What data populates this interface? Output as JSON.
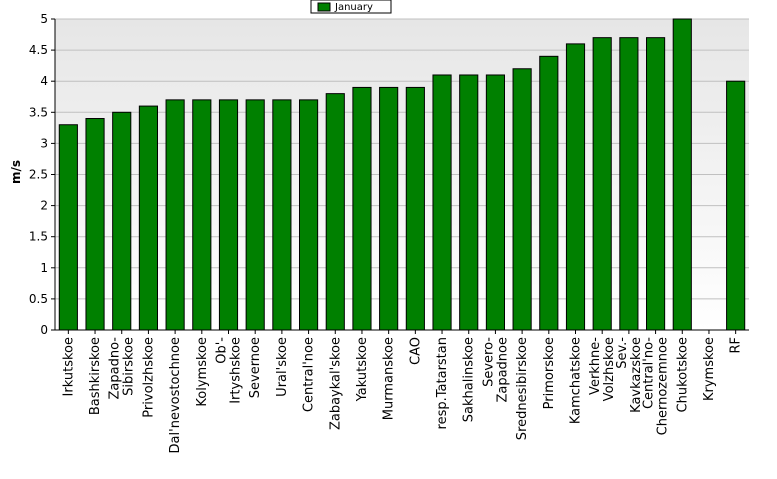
{
  "chart_data": {
    "type": "bar",
    "title": "",
    "xlabel": "",
    "ylabel": "m/s",
    "ylim": [
      0,
      5
    ],
    "yticks": [
      "0",
      "0.5",
      "1",
      "1.5",
      "2",
      "2.5",
      "3",
      "3.5",
      "4",
      "4.5",
      "5"
    ],
    "grid": true,
    "legend_position": "top-center",
    "categories": [
      [
        "Irkutskoe"
      ],
      [
        "Bashkirskoe"
      ],
      [
        "Zapadno-",
        "Sibirskoe"
      ],
      [
        "Privolzhskoe"
      ],
      [
        "Dal'nevostochnoe"
      ],
      [
        "Kolymskoe"
      ],
      [
        "Ob'-",
        "Irtyshskoe"
      ],
      [
        "Severnoe"
      ],
      [
        "Ural'skoe"
      ],
      [
        "Central'noe"
      ],
      [
        "Zabaykal'skoe"
      ],
      [
        "Yakutskoe"
      ],
      [
        "Murmanskoe"
      ],
      [
        "CAO"
      ],
      [
        "resp.Tatarstan"
      ],
      [
        "Sakhalinskoe"
      ],
      [
        "Severo-",
        "Zapadnoe"
      ],
      [
        "Srednesibirskoe"
      ],
      [
        "Primorskoe"
      ],
      [
        "Kamchatskoe"
      ],
      [
        "Verkhne-",
        "Volzhskoe"
      ],
      [
        "Sev.-",
        "Kavkazskoe"
      ],
      [
        "Central'no-",
        "Chernozemnoe"
      ],
      [
        "Chukotskoe"
      ],
      [
        "Krymskoe"
      ],
      [
        "RF"
      ]
    ],
    "series": [
      {
        "name": "January",
        "color": "#008000",
        "values": [
          3.3,
          3.4,
          3.5,
          3.6,
          3.7,
          3.7,
          3.7,
          3.7,
          3.7,
          3.7,
          3.8,
          3.9,
          3.9,
          3.9,
          4.1,
          4.1,
          4.1,
          4.2,
          4.4,
          4.6,
          4.7,
          4.7,
          4.7,
          5.0,
          null,
          4.0
        ]
      }
    ]
  },
  "colors": {
    "plot_background_top": "#e6e6e6",
    "plot_background_bottom": "#ffffff",
    "gridline": "#c0c0c0",
    "bar_fill": "#008000",
    "bar_stroke": "#000000"
  }
}
